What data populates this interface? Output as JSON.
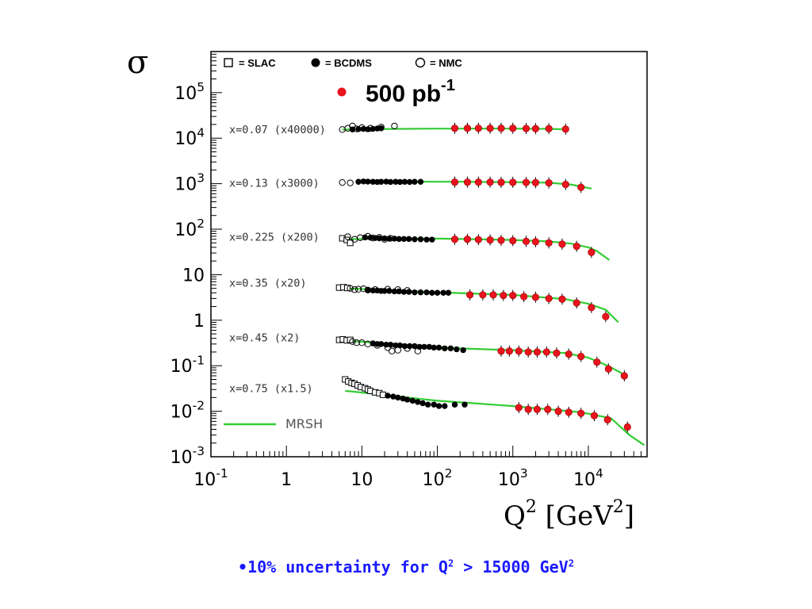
{
  "chart_data": {
    "type": "scatter",
    "xscale": "log",
    "yscale": "log",
    "xlim": [
      0.1,
      60000
    ],
    "ylim": [
      0.001,
      800000
    ],
    "ylabel": "σ",
    "xlabel": "Q² [GeV²]",
    "x_ticks": [
      {
        "value": 0.1,
        "label": "10^-1"
      },
      {
        "value": 1,
        "label": "1"
      },
      {
        "value": 10,
        "label": "10"
      },
      {
        "value": 100,
        "label": "10^2"
      },
      {
        "value": 1000,
        "label": "10^3"
      },
      {
        "value": 10000,
        "label": "10^4"
      }
    ],
    "y_ticks": [
      {
        "value": 100000,
        "label": "10^5"
      },
      {
        "value": 10000,
        "label": "10^4"
      },
      {
        "value": 1000,
        "label": "10^3"
      },
      {
        "value": 100,
        "label": "10^2"
      },
      {
        "value": 10,
        "label": "10"
      },
      {
        "value": 1,
        "label": "1"
      },
      {
        "value": 0.1,
        "label": "10^-1"
      },
      {
        "value": 0.01,
        "label": "10^-2"
      },
      {
        "value": 0.001,
        "label": "10^-3"
      }
    ],
    "legend": [
      {
        "name": "= SLAC",
        "marker": "open-square"
      },
      {
        "name": "= BCDMS",
        "marker": "filled-circle"
      },
      {
        "name": "= NMC",
        "marker": "open-circle"
      }
    ],
    "projection_label": "500 pb",
    "projection_exponent": "-1",
    "projection_color": "#e8141e",
    "curve_color": "#33cc33",
    "curve_name": "MRSH",
    "series": [
      {
        "label": "x=0.07 (x40000)",
        "label_y": 15800,
        "curve": [
          [
            5.5,
            15500
          ],
          [
            10,
            15600
          ],
          [
            30,
            16000
          ],
          [
            100,
            16200
          ],
          [
            1000,
            16200
          ],
          [
            3000,
            16000
          ],
          [
            5500,
            15500
          ]
        ],
        "slac": [],
        "nmc": [
          [
            5.5,
            15500
          ],
          [
            6.5,
            16500
          ],
          [
            7.5,
            18500
          ],
          [
            8.5,
            16000
          ],
          [
            10,
            17000
          ],
          [
            13,
            16500
          ],
          [
            18,
            17500
          ],
          [
            27,
            18500
          ]
        ],
        "bcdms": [
          [
            7.5,
            15500
          ],
          [
            9,
            15800
          ],
          [
            10.5,
            16000
          ],
          [
            12,
            15700
          ],
          [
            14,
            16000
          ],
          [
            16,
            16300
          ],
          [
            18,
            16500
          ]
        ],
        "projection": [
          [
            170,
            16500
          ],
          [
            250,
            16500
          ],
          [
            350,
            16500
          ],
          [
            500,
            16500
          ],
          [
            700,
            16500
          ],
          [
            1000,
            16500
          ],
          [
            1500,
            16300
          ],
          [
            2000,
            16200
          ],
          [
            3000,
            16200
          ],
          [
            5000,
            15800
          ]
        ]
      },
      {
        "label": "x=0.13 (x3000)",
        "label_y": 1050,
        "curve": [
          [
            10,
            1080
          ],
          [
            50,
            1100
          ],
          [
            200,
            1100
          ],
          [
            1000,
            1080
          ],
          [
            3000,
            1050
          ],
          [
            6000,
            950
          ],
          [
            11000,
            780
          ]
        ],
        "slac": [],
        "nmc": [
          [
            5.5,
            1060
          ],
          [
            7,
            1040
          ]
        ],
        "bcdms": [
          [
            9,
            1100
          ],
          [
            10.5,
            1120
          ],
          [
            12,
            1110
          ],
          [
            14,
            1100
          ],
          [
            16,
            1090
          ],
          [
            18,
            1100
          ],
          [
            21,
            1110
          ],
          [
            24,
            1090
          ],
          [
            28,
            1100
          ],
          [
            32,
            1090
          ],
          [
            37,
            1100
          ],
          [
            43,
            1090
          ],
          [
            50,
            1100
          ],
          [
            60,
            1100
          ]
        ],
        "projection": [
          [
            170,
            1080
          ],
          [
            250,
            1080
          ],
          [
            350,
            1080
          ],
          [
            500,
            1080
          ],
          [
            700,
            1070
          ],
          [
            1000,
            1070
          ],
          [
            1500,
            1060
          ],
          [
            2000,
            1050
          ],
          [
            3000,
            1040
          ],
          [
            5000,
            960
          ],
          [
            8000,
            830
          ]
        ]
      },
      {
        "label": "x=0.225 (x200)",
        "label_y": 68,
        "curve": [
          [
            5,
            60
          ],
          [
            20,
            62
          ],
          [
            100,
            62
          ],
          [
            1000,
            58
          ],
          [
            3000,
            54
          ],
          [
            6000,
            48
          ],
          [
            10000,
            40
          ],
          [
            13000,
            33
          ],
          [
            19000,
            21
          ]
        ],
        "slac": [
          [
            5.5,
            63
          ],
          [
            6.3,
            58
          ],
          [
            7,
            50
          ]
        ],
        "nmc": [
          [
            6.5,
            68
          ],
          [
            8,
            60
          ],
          [
            9.5,
            65
          ],
          [
            12,
            70
          ],
          [
            14,
            64
          ],
          [
            17,
            66
          ],
          [
            20,
            60
          ],
          [
            24,
            63
          ]
        ],
        "bcdms": [
          [
            11,
            66
          ],
          [
            13,
            65
          ],
          [
            15,
            64
          ],
          [
            17,
            63
          ],
          [
            20,
            63
          ],
          [
            23,
            62
          ],
          [
            27,
            62
          ],
          [
            31,
            61
          ],
          [
            36,
            61
          ],
          [
            42,
            61
          ],
          [
            50,
            60
          ],
          [
            60,
            60
          ],
          [
            72,
            59
          ],
          [
            85,
            59
          ]
        ],
        "projection": [
          [
            170,
            60
          ],
          [
            250,
            60
          ],
          [
            350,
            59
          ],
          [
            500,
            58
          ],
          [
            700,
            57
          ],
          [
            1000,
            56
          ],
          [
            1500,
            54
          ],
          [
            2000,
            53
          ],
          [
            3000,
            50
          ],
          [
            4500,
            47
          ],
          [
            7000,
            42
          ],
          [
            11000,
            31
          ]
        ]
      },
      {
        "label": "x=0.35 (x20)",
        "label_y": 6.7,
        "curve": [
          [
            5,
            5.1
          ],
          [
            20,
            4.6
          ],
          [
            100,
            4.1
          ],
          [
            1000,
            3.6
          ],
          [
            5000,
            2.9
          ],
          [
            10000,
            2.3
          ],
          [
            17000,
            1.7
          ],
          [
            25000,
            0.9
          ]
        ],
        "slac": [
          [
            5,
            5.2
          ],
          [
            5.7,
            5.3
          ],
          [
            6.4,
            5.1
          ]
        ],
        "nmc": [
          [
            7,
            5.0
          ],
          [
            8,
            4.7
          ],
          [
            9,
            4.8
          ],
          [
            10.5,
            4.9
          ],
          [
            12,
            4.6
          ],
          [
            15,
            4.7
          ],
          [
            22,
            4.8
          ],
          [
            30,
            4.7
          ],
          [
            40,
            4.5
          ]
        ],
        "bcdms": [
          [
            12,
            4.6
          ],
          [
            14,
            4.5
          ],
          [
            16,
            4.5
          ],
          [
            18,
            4.4
          ],
          [
            20,
            4.4
          ],
          [
            23,
            4.4
          ],
          [
            27,
            4.3
          ],
          [
            31,
            4.3
          ],
          [
            36,
            4.2
          ],
          [
            42,
            4.2
          ],
          [
            50,
            4.1
          ],
          [
            60,
            4.1
          ],
          [
            72,
            4.1
          ],
          [
            85,
            4.0
          ],
          [
            100,
            4.0
          ],
          [
            120,
            4.0
          ],
          [
            140,
            4.0
          ]
        ],
        "projection": [
          [
            270,
            3.6
          ],
          [
            400,
            3.6
          ],
          [
            550,
            3.6
          ],
          [
            750,
            3.5
          ],
          [
            1000,
            3.5
          ],
          [
            1400,
            3.3
          ],
          [
            2000,
            3.2
          ],
          [
            3000,
            3.0
          ],
          [
            4500,
            2.9
          ],
          [
            7000,
            2.4
          ],
          [
            11000,
            1.9
          ],
          [
            17000,
            1.2
          ]
        ]
      },
      {
        "label": "x=0.45 (x2)",
        "label_y": 0.42,
        "curve": [
          [
            5,
            0.36
          ],
          [
            15,
            0.32
          ],
          [
            50,
            0.28
          ],
          [
            200,
            0.24
          ],
          [
            1000,
            0.22
          ],
          [
            5000,
            0.19
          ],
          [
            10000,
            0.15
          ],
          [
            18000,
            0.1
          ],
          [
            27000,
            0.07
          ],
          [
            32000,
            0.055
          ]
        ],
        "slac": [
          [
            5,
            0.37
          ],
          [
            5.6,
            0.38
          ],
          [
            6.3,
            0.36
          ],
          [
            7,
            0.37
          ]
        ],
        "nmc": [
          [
            7.5,
            0.34
          ],
          [
            8.5,
            0.32
          ],
          [
            10,
            0.32
          ],
          [
            12,
            0.3
          ],
          [
            16,
            0.28
          ],
          [
            22,
            0.25
          ],
          [
            25,
            0.21
          ],
          [
            30,
            0.22
          ],
          [
            40,
            0.24
          ],
          [
            55,
            0.21
          ]
        ],
        "bcdms": [
          [
            14,
            0.31
          ],
          [
            16,
            0.3
          ],
          [
            18,
            0.3
          ],
          [
            21,
            0.29
          ],
          [
            24,
            0.29
          ],
          [
            28,
            0.28
          ],
          [
            32,
            0.28
          ],
          [
            37,
            0.27
          ],
          [
            43,
            0.27
          ],
          [
            50,
            0.27
          ],
          [
            58,
            0.26
          ],
          [
            67,
            0.26
          ],
          [
            78,
            0.26
          ],
          [
            90,
            0.25
          ],
          [
            105,
            0.25
          ],
          [
            125,
            0.24
          ],
          [
            150,
            0.24
          ],
          [
            180,
            0.23
          ],
          [
            220,
            0.22
          ]
        ],
        "projection": [
          [
            700,
            0.21
          ],
          [
            900,
            0.21
          ],
          [
            1200,
            0.21
          ],
          [
            1600,
            0.2
          ],
          [
            2100,
            0.2
          ],
          [
            2800,
            0.2
          ],
          [
            3800,
            0.19
          ],
          [
            5500,
            0.18
          ],
          [
            8000,
            0.16
          ],
          [
            13000,
            0.12
          ],
          [
            18500,
            0.085
          ],
          [
            30000,
            0.06
          ]
        ]
      },
      {
        "label": "x=0.75 (x1.5)",
        "label_y": 0.032,
        "curve": [
          [
            6,
            0.028
          ],
          [
            15,
            0.024
          ],
          [
            40,
            0.02
          ],
          [
            100,
            0.017
          ],
          [
            300,
            0.015
          ],
          [
            1000,
            0.013
          ],
          [
            3000,
            0.011
          ],
          [
            8000,
            0.0095
          ],
          [
            20000,
            0.007
          ],
          [
            35000,
            0.003
          ],
          [
            55000,
            0.0018
          ]
        ],
        "slac": [
          [
            6,
            0.05
          ],
          [
            6.6,
            0.045
          ],
          [
            7.3,
            0.042
          ],
          [
            8,
            0.04
          ],
          [
            8.8,
            0.037
          ],
          [
            9.7,
            0.034
          ],
          [
            11,
            0.032
          ],
          [
            12,
            0.03
          ],
          [
            13,
            0.028
          ],
          [
            15,
            0.026
          ],
          [
            17,
            0.025
          ],
          [
            19,
            0.023
          ]
        ],
        "nmc": [],
        "bcdms": [
          [
            22,
            0.022
          ],
          [
            26,
            0.021
          ],
          [
            30,
            0.02
          ],
          [
            35,
            0.019
          ],
          [
            40,
            0.018
          ],
          [
            47,
            0.017
          ],
          [
            55,
            0.016
          ],
          [
            64,
            0.015
          ],
          [
            75,
            0.014
          ],
          [
            90,
            0.014
          ],
          [
            105,
            0.013
          ],
          [
            125,
            0.013
          ],
          [
            170,
            0.014
          ],
          [
            230,
            0.014
          ]
        ],
        "projection": [
          [
            1200,
            0.012
          ],
          [
            1600,
            0.011
          ],
          [
            2100,
            0.011
          ],
          [
            2900,
            0.011
          ],
          [
            4000,
            0.01
          ],
          [
            5500,
            0.0095
          ],
          [
            8000,
            0.009
          ],
          [
            12000,
            0.008
          ],
          [
            18000,
            0.0065
          ],
          [
            33000,
            0.0045
          ]
        ]
      }
    ]
  },
  "footnote": {
    "bullet": "•",
    "text_before": "10% uncertainty for Q",
    "sup1": "2",
    "text_after": " > 15000 GeV",
    "sup2": "2"
  }
}
